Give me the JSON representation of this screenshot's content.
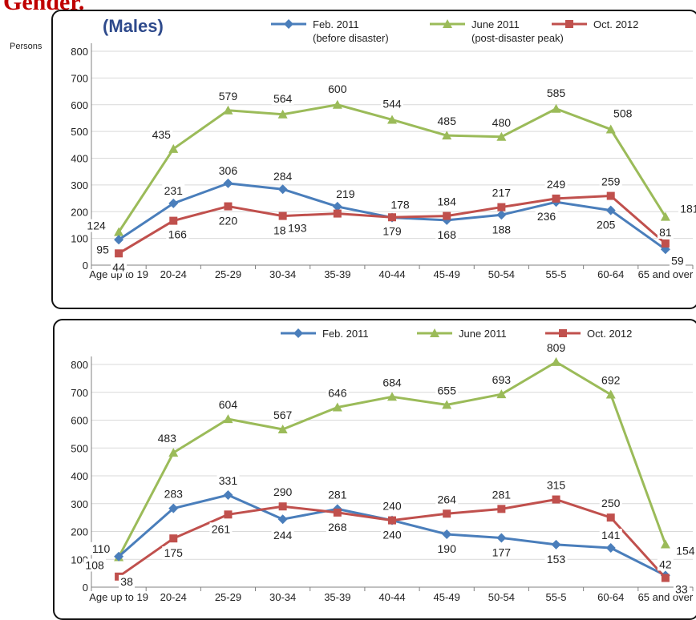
{
  "heading": "Gender.",
  "ylabel": "Persons",
  "colors": {
    "feb": "#4a7ebb",
    "june": "#9bbb59",
    "oct": "#c0504d"
  },
  "chart_data": [
    {
      "type": "line",
      "title": "(Males)",
      "categories": [
        "Age up to 19",
        "20-24",
        "25-29",
        "30-34",
        "35-39",
        "40-44",
        "45-49",
        "50-54",
        "55-5",
        "60-64",
        "65 and over"
      ],
      "ylim": [
        0,
        800
      ],
      "yticks": [
        "0",
        "100",
        "200",
        "300",
        "400",
        "500",
        "600",
        "700",
        "800"
      ],
      "grid": true,
      "legend": "top",
      "series": [
        {
          "key": "feb",
          "name": "Feb. 2011",
          "name2": "(before disaster)",
          "values": [
            95,
            231,
            306,
            284,
            219,
            178,
            168,
            188,
            236,
            205,
            59
          ],
          "labels": [
            "95",
            "231",
            "306",
            "284",
            "219",
            "178",
            "168",
            "188",
            "236",
            "205",
            "59"
          ]
        },
        {
          "key": "june",
          "name": "June 2011",
          "name2": "(post-disaster peak)",
          "values": [
            124,
            435,
            579,
            564,
            600,
            544,
            485,
            480,
            585,
            508,
            181
          ],
          "labels": [
            "124",
            "435",
            "579",
            "564",
            "600",
            "544",
            "485",
            "480",
            "585",
            "508",
            "181"
          ]
        },
        {
          "key": "oct",
          "name": "Oct. 2012",
          "name2": "",
          "values": [
            44,
            166,
            220,
            184,
            193,
            179,
            184,
            217,
            249,
            259,
            81
          ],
          "labels": [
            "44",
            "166",
            "220",
            "184",
            "193",
            "179",
            "184",
            "217",
            "249",
            "259",
            "81"
          ]
        }
      ]
    },
    {
      "type": "line",
      "title": "",
      "categories": [
        "Age up to 19",
        "20-24",
        "25-29",
        "30-34",
        "35-39",
        "40-44",
        "45-49",
        "50-54",
        "55-5",
        "60-64",
        "65 and over"
      ],
      "ylim": [
        0,
        800
      ],
      "yticks": [
        "0",
        "100",
        "200",
        "300",
        "400",
        "500",
        "600",
        "700",
        "800"
      ],
      "grid": true,
      "legend": "top",
      "series": [
        {
          "key": "feb",
          "name": "Feb. 2011",
          "name2": "",
          "values": [
            110,
            283,
            331,
            244,
            281,
            240,
            190,
            177,
            153,
            141,
            42
          ],
          "labels": [
            "110",
            "283",
            "331",
            "244",
            "281",
            "240",
            "190",
            "177",
            "153",
            "141",
            "42"
          ]
        },
        {
          "key": "june",
          "name": "June 2011",
          "name2": "",
          "values": [
            108,
            483,
            604,
            567,
            646,
            684,
            655,
            693,
            809,
            692,
            154
          ],
          "labels": [
            "108",
            "483",
            "604",
            "567",
            "646",
            "684",
            "655",
            "693",
            "809",
            "692",
            "154"
          ]
        },
        {
          "key": "oct",
          "name": "Oct. 2012",
          "name2": "",
          "values": [
            38,
            175,
            261,
            290,
            268,
            240,
            264,
            281,
            315,
            250,
            33
          ],
          "labels": [
            "38",
            "175",
            "261",
            "290",
            "268",
            "240",
            "264",
            "281",
            "315",
            "250",
            "33"
          ]
        }
      ]
    }
  ]
}
